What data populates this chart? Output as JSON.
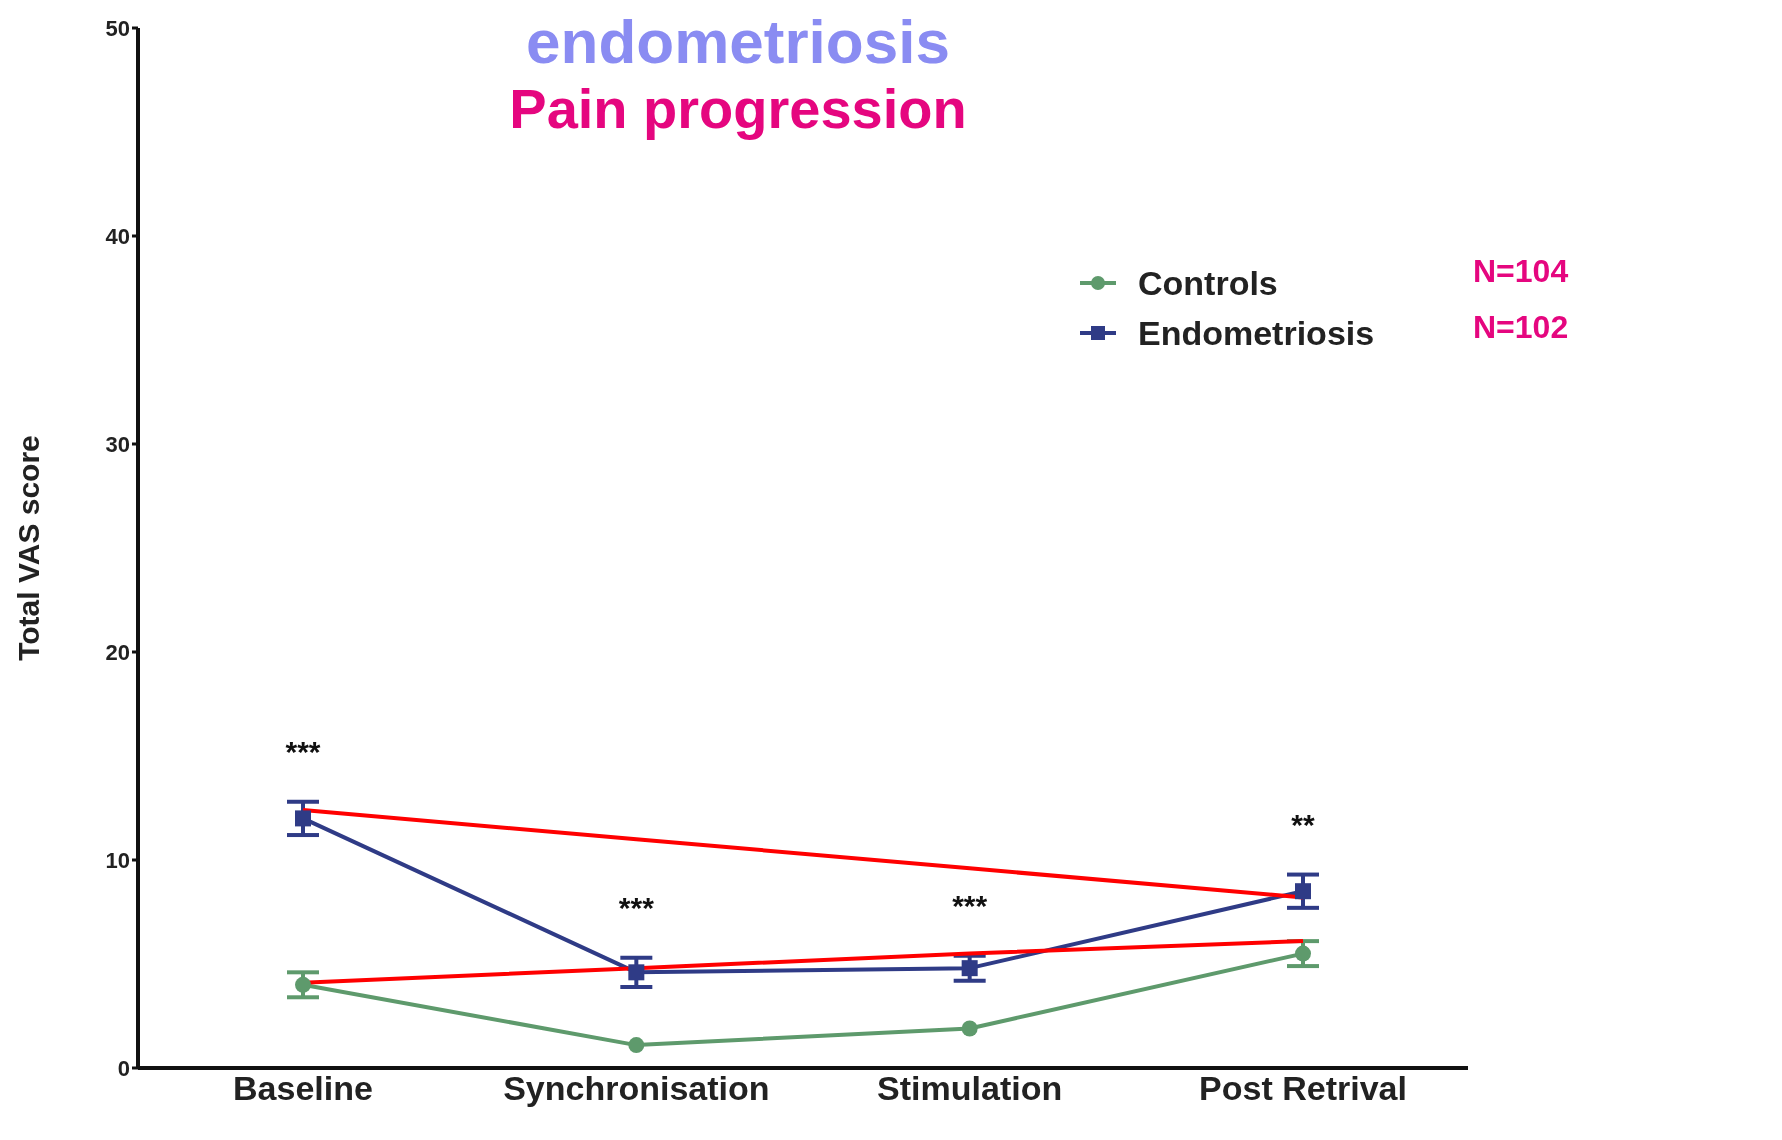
{
  "chart_data": {
    "type": "line",
    "title": "endometriosis",
    "subtitle": "Pain progression",
    "ylabel": "Total VAS score",
    "categories": [
      "Baseline",
      "Synchronisation",
      "Stimulation",
      "Post Retrival"
    ],
    "series": [
      {
        "name": "Controls",
        "color": "#5e9a6c",
        "marker": "circle",
        "values": [
          4.0,
          1.1,
          1.9,
          5.5
        ],
        "errors": [
          0.6,
          null,
          null,
          0.6
        ]
      },
      {
        "name": "Endometriosis",
        "color": "#2f3b86",
        "marker": "square",
        "values": [
          12.0,
          4.6,
          4.8,
          8.5
        ],
        "errors": [
          0.8,
          0.7,
          0.6,
          0.8
        ]
      },
      {
        "color": "#ff0000",
        "marker": "none",
        "values": [
          12.4,
          11.0,
          9.6,
          8.2
        ]
      },
      {
        "color": "#ff0000",
        "marker": "none",
        "values": [
          4.1,
          4.8,
          5.5,
          6.1
        ]
      }
    ],
    "ylim": [
      0,
      50
    ],
    "yticks": [
      0,
      10,
      20,
      30,
      40,
      50
    ],
    "grid": false,
    "legend": "top right",
    "annotations": [
      "N=104",
      "N=102",
      "***",
      "***",
      "***",
      "**"
    ]
  }
}
